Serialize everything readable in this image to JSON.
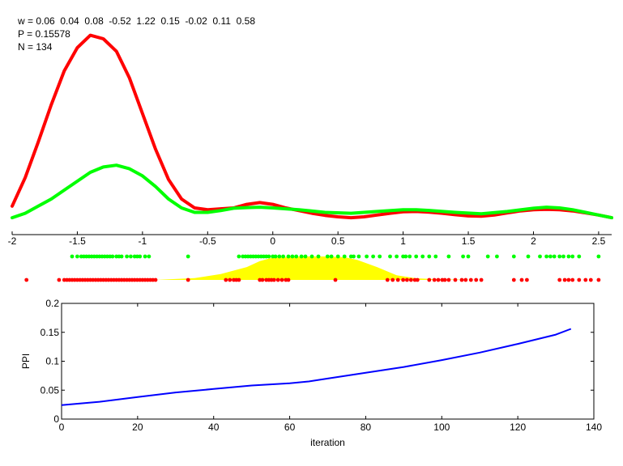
{
  "annotations": {
    "w_line": "w = 0.06  0.04  0.08  -0.52  1.22  0.15  -0.02  0.11  0.58",
    "p_line": "P = 0.15578",
    "n_line": "N = 134"
  },
  "chart_data": [
    {
      "type": "line",
      "title": "",
      "xlabel": "",
      "ylabel": "",
      "xlim": [
        -2,
        2.6
      ],
      "grid": false,
      "x_ticks": [
        "-2",
        "-1.5",
        "-1",
        "-0.5",
        "0",
        "0.5",
        "1",
        "1.5",
        "2",
        "2.5"
      ],
      "x_tick_values": [
        -2,
        -1.5,
        -1,
        -0.5,
        0,
        0.5,
        1,
        1.5,
        2,
        2.5
      ],
      "colors": {
        "red": "#ff0000",
        "green": "#00ff00",
        "yellow": "#ffff00",
        "axis": "#000000"
      },
      "series": [
        {
          "color": "red",
          "points": [
            [
              -2,
              0.06
            ],
            [
              -1.9,
              0.22
            ],
            [
              -1.8,
              0.42
            ],
            [
              -1.7,
              0.63
            ],
            [
              -1.6,
              0.82
            ],
            [
              -1.5,
              0.95
            ],
            [
              -1.4,
              1.02
            ],
            [
              -1.3,
              1.0
            ],
            [
              -1.2,
              0.93
            ],
            [
              -1.1,
              0.78
            ],
            [
              -1.0,
              0.58
            ],
            [
              -0.9,
              0.38
            ],
            [
              -0.8,
              0.21
            ],
            [
              -0.7,
              0.1
            ],
            [
              -0.6,
              0.05
            ],
            [
              -0.5,
              0.04
            ],
            [
              -0.3,
              0.05
            ],
            [
              -0.2,
              0.07
            ],
            [
              -0.1,
              0.08
            ],
            [
              0,
              0.07
            ],
            [
              0.1,
              0.05
            ],
            [
              0.2,
              0.035
            ],
            [
              0.3,
              0.02
            ],
            [
              0.4,
              0.008
            ],
            [
              0.5,
              0.0
            ],
            [
              0.6,
              -0.005
            ],
            [
              0.7,
              0.0
            ],
            [
              0.8,
              0.01
            ],
            [
              0.9,
              0.02
            ],
            [
              1.0,
              0.028
            ],
            [
              1.1,
              0.03
            ],
            [
              1.2,
              0.026
            ],
            [
              1.3,
              0.02
            ],
            [
              1.4,
              0.012
            ],
            [
              1.5,
              0.005
            ],
            [
              1.6,
              0.003
            ],
            [
              1.7,
              0.01
            ],
            [
              1.8,
              0.022
            ],
            [
              1.9,
              0.033
            ],
            [
              2.0,
              0.04
            ],
            [
              2.1,
              0.042
            ],
            [
              2.2,
              0.04
            ],
            [
              2.3,
              0.033
            ],
            [
              2.4,
              0.022
            ],
            [
              2.5,
              0.01
            ],
            [
              2.6,
              -0.005
            ]
          ]
        },
        {
          "color": "green",
          "points": [
            [
              -2,
              -0.005
            ],
            [
              -1.9,
              0.02
            ],
            [
              -1.8,
              0.06
            ],
            [
              -1.7,
              0.1
            ],
            [
              -1.6,
              0.15
            ],
            [
              -1.5,
              0.2
            ],
            [
              -1.4,
              0.25
            ],
            [
              -1.3,
              0.28
            ],
            [
              -1.2,
              0.29
            ],
            [
              -1.1,
              0.27
            ],
            [
              -1.0,
              0.23
            ],
            [
              -0.9,
              0.17
            ],
            [
              -0.8,
              0.1
            ],
            [
              -0.7,
              0.05
            ],
            [
              -0.6,
              0.025
            ],
            [
              -0.5,
              0.025
            ],
            [
              -0.4,
              0.035
            ],
            [
              -0.3,
              0.048
            ],
            [
              -0.2,
              0.052
            ],
            [
              -0.1,
              0.054
            ],
            [
              0,
              0.05
            ],
            [
              0.2,
              0.04
            ],
            [
              0.4,
              0.025
            ],
            [
              0.6,
              0.02
            ],
            [
              0.8,
              0.03
            ],
            [
              1.0,
              0.04
            ],
            [
              1.1,
              0.04
            ],
            [
              1.2,
              0.036
            ],
            [
              1.4,
              0.025
            ],
            [
              1.6,
              0.017
            ],
            [
              1.8,
              0.03
            ],
            [
              2.0,
              0.048
            ],
            [
              2.1,
              0.054
            ],
            [
              2.2,
              0.05
            ],
            [
              2.3,
              0.04
            ],
            [
              2.4,
              0.025
            ],
            [
              2.5,
              0.01
            ],
            [
              2.6,
              -0.005
            ]
          ]
        }
      ],
      "green_points": [
        -1.54,
        -1.5,
        -1.47,
        -1.45,
        -1.43,
        -1.41,
        -1.39,
        -1.37,
        -1.35,
        -1.33,
        -1.31,
        -1.29,
        -1.27,
        -1.25,
        -1.23,
        -1.2,
        -1.18,
        -1.16,
        -1.12,
        -1.09,
        -1.06,
        -1.04,
        -1.02,
        -0.98,
        -0.95,
        -0.65,
        -0.26,
        -0.23,
        -0.21,
        -0.19,
        -0.17,
        -0.15,
        -0.13,
        -0.11,
        -0.09,
        -0.07,
        -0.05,
        -0.03,
        0.0,
        0.02,
        0.05,
        0.08,
        0.12,
        0.15,
        0.18,
        0.22,
        0.25,
        0.3,
        0.35,
        0.42,
        0.45,
        0.5,
        0.55,
        0.6,
        0.62,
        0.66,
        0.72,
        0.77,
        0.82,
        0.9,
        0.95,
        1.0,
        1.02,
        1.05,
        1.1,
        1.15,
        1.2,
        1.25,
        1.35,
        1.46,
        1.5,
        1.65,
        1.72,
        1.85,
        1.96,
        2.05,
        2.1,
        2.13,
        2.16,
        2.2,
        2.23,
        2.27,
        2.3,
        2.35,
        2.5
      ],
      "red_points": [
        -1.89,
        -1.64,
        -1.6,
        -1.58,
        -1.56,
        -1.54,
        -1.52,
        -1.5,
        -1.48,
        -1.46,
        -1.44,
        -1.42,
        -1.4,
        -1.38,
        -1.36,
        -1.34,
        -1.32,
        -1.3,
        -1.28,
        -1.26,
        -1.24,
        -1.22,
        -1.2,
        -1.18,
        -1.16,
        -1.14,
        -1.12,
        -1.1,
        -1.08,
        -1.06,
        -1.04,
        -1.02,
        -1.0,
        -0.98,
        -0.96,
        -0.94,
        -0.92,
        -0.9,
        -0.65,
        -0.36,
        -0.33,
        -0.3,
        -0.28,
        -0.26,
        -0.1,
        -0.08,
        -0.05,
        -0.03,
        -0.01,
        0.01,
        0.04,
        0.07,
        0.1,
        0.12,
        0.48,
        0.88,
        0.92,
        0.96,
        1.0,
        1.03,
        1.06,
        1.09,
        1.11,
        1.2,
        1.24,
        1.27,
        1.3,
        1.32,
        1.35,
        1.4,
        1.45,
        1.48,
        1.52,
        1.56,
        1.6,
        1.85,
        1.91,
        1.95,
        2.2,
        2.24,
        2.27,
        2.3,
        2.35,
        2.4,
        2.44,
        2.5
      ],
      "yellow_band": {
        "x": [
          -0.9,
          -0.6,
          -0.4,
          -0.2,
          -0.1,
          0.0,
          0.2,
          0.4,
          0.55,
          0.65,
          0.8,
          0.95,
          1.1,
          1.3,
          1.6
        ],
        "y": [
          0.0,
          0.08,
          0.25,
          0.55,
          0.8,
          0.95,
          1.0,
          1.0,
          0.97,
          0.85,
          0.55,
          0.2,
          0.07,
          0.02,
          0.0
        ]
      }
    },
    {
      "type": "line",
      "title": "",
      "xlabel": "iteration",
      "ylabel": "PPI",
      "xlim": [
        0,
        140
      ],
      "ylim": [
        0,
        0.2
      ],
      "grid": false,
      "x_ticks": [
        "0",
        "20",
        "40",
        "60",
        "80",
        "100",
        "120",
        "140"
      ],
      "x_tick_values": [
        0,
        20,
        40,
        60,
        80,
        100,
        120,
        140
      ],
      "y_ticks": [
        "0",
        "0.05",
        "0.1",
        "0.15",
        "0.2"
      ],
      "y_tick_values": [
        0,
        0.05,
        0.1,
        0.15,
        0.2
      ],
      "series": [
        {
          "color": "#0000ff",
          "x": [
            0,
            10,
            20,
            30,
            40,
            50,
            60,
            65,
            70,
            80,
            90,
            100,
            110,
            120,
            130,
            134
          ],
          "y": [
            0.024,
            0.03,
            0.038,
            0.046,
            0.052,
            0.058,
            0.062,
            0.065,
            0.07,
            0.08,
            0.09,
            0.102,
            0.115,
            0.13,
            0.146,
            0.156
          ]
        }
      ]
    }
  ]
}
